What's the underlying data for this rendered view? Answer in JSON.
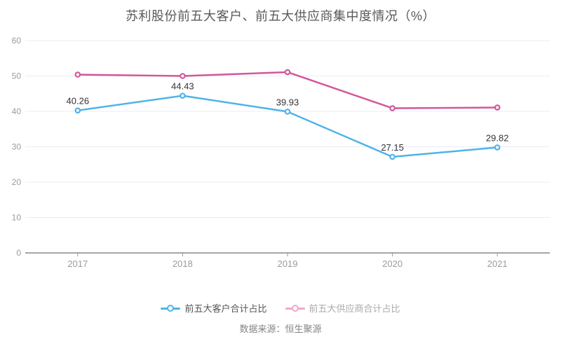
{
  "title": "苏利股份前五大客户、前五大供应商集中度情况（%）",
  "source": "数据来源：恒生聚源",
  "colors": {
    "customers_line": "#4fb3e8",
    "suppliers_line": "#d2589b",
    "grid_line": "#e8eef7",
    "axis_line": "#4d4d4d",
    "axis_tick": "#999999",
    "axis_label": "#9b9b9b",
    "data_label": "#333333",
    "title_text": "#595959",
    "source_text": "#848484"
  },
  "chart_data": {
    "type": "line",
    "title": "苏利股份前五大客户、前五大供应商集中度情况（%）",
    "categories": [
      "2017",
      "2018",
      "2019",
      "2020",
      "2021"
    ],
    "series": [
      {
        "name": "前五大客户合计占比",
        "values": [
          40.26,
          44.43,
          39.93,
          27.15,
          29.82
        ],
        "color": "#4fb3e8",
        "labels_shown": true,
        "data_labels": [
          "40.26",
          "44.43",
          "39.93",
          "27.15",
          "29.82"
        ]
      },
      {
        "name": "前五大供应商合计占比",
        "values": [
          50.4,
          50.0,
          51.1,
          40.9,
          41.1
        ],
        "color": "#d2589b",
        "labels_shown": false,
        "data_labels": []
      }
    ],
    "xlabel": "",
    "ylabel": "",
    "ylim": [
      0,
      60
    ],
    "y_ticks": [
      0,
      10,
      20,
      30,
      40,
      50,
      60
    ],
    "grid": true,
    "legend_position": "bottom"
  },
  "legend": {
    "items": [
      {
        "label": "前五大客户合计占比",
        "marker_color": "#4fb3e8",
        "text_color": "#555555"
      },
      {
        "label": "前五大供应商合计占比",
        "marker_color": "#f0a8cd",
        "text_color": "#ababab"
      }
    ]
  }
}
